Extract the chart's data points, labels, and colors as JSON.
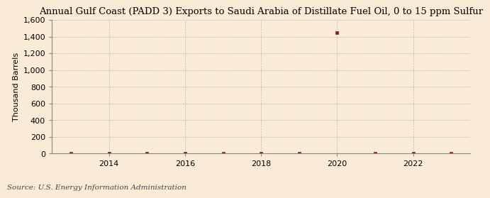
{
  "title": "Annual Gulf Coast (PADD 3) Exports to Saudi Arabia of Distillate Fuel Oil, 0 to 15 ppm Sulfur",
  "ylabel": "Thousand Barrels",
  "source": "Source: U.S. Energy Information Administration",
  "background_color": "#faebd7",
  "years": [
    2013,
    2014,
    2015,
    2016,
    2017,
    2018,
    2019,
    2020,
    2021,
    2022,
    2023
  ],
  "values": [
    0,
    0,
    0,
    0,
    0,
    0,
    0,
    1449,
    0,
    0,
    0
  ],
  "marker_color": "#8b1a1a",
  "ylim": [
    0,
    1600
  ],
  "yticks": [
    0,
    200,
    400,
    600,
    800,
    1000,
    1200,
    1400,
    1600
  ],
  "xlim": [
    2012.5,
    2023.5
  ],
  "xticks": [
    2014,
    2016,
    2018,
    2020,
    2022
  ],
  "grid_color": "#bbbbbb",
  "title_fontsize": 9.5,
  "label_fontsize": 8,
  "tick_fontsize": 8,
  "source_fontsize": 7.5
}
